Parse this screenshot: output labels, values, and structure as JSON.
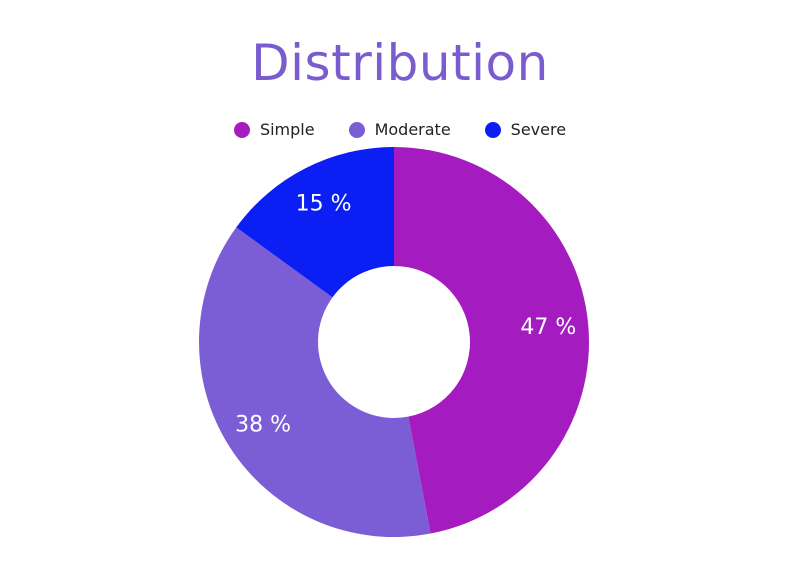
{
  "chart_data": {
    "type": "pie",
    "variant": "donut",
    "title": "Distribution",
    "legend_position": "top",
    "categories": [
      "Simple",
      "Moderate",
      "Severe"
    ],
    "values": [
      47,
      38,
      15
    ],
    "labels": [
      "47 %",
      "38 %",
      "15 %"
    ],
    "colors": [
      "#a41cc0",
      "#7b5dd6",
      "#0b1ff5"
    ]
  }
}
